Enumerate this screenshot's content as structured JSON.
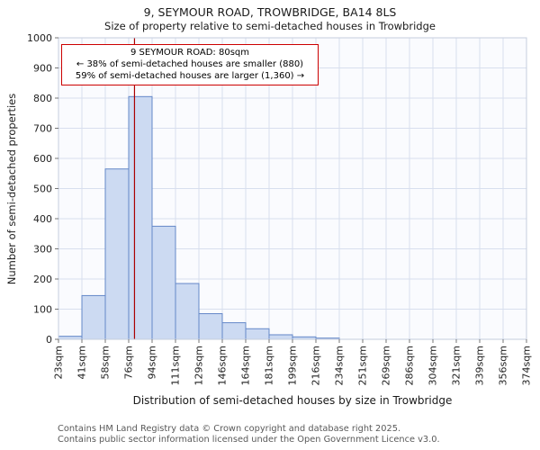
{
  "annotation": {
    "line1": "9 SEYMOUR ROAD: 80sqm",
    "line2": "← 38% of semi-detached houses are smaller (880)",
    "line3": "59% of semi-detached houses are larger (1,360) →"
  },
  "footer": {
    "line1": "Contains HM Land Registry data © Crown copyright and database right 2025.",
    "line2": "Contains public sector information licensed under the Open Government Licence v3.0."
  },
  "chart_data": {
    "type": "bar",
    "title": "9, SEYMOUR ROAD, TROWBRIDGE, BA14 8LS",
    "subtitle": "Size of property relative to semi-detached houses in Trowbridge",
    "xlabel": "Distribution of semi-detached houses by size in Trowbridge",
    "ylabel": "Number of semi-detached properties",
    "ylim": [
      0,
      1000
    ],
    "ytick_step": 100,
    "grid": true,
    "legend": false,
    "bin_edges_sqm": [
      23,
      41,
      58,
      76,
      94,
      111,
      129,
      146,
      164,
      181,
      199,
      216,
      234,
      251,
      269,
      286,
      304,
      321,
      339,
      356,
      374
    ],
    "xtick_labels": [
      "23sqm",
      "41sqm",
      "58sqm",
      "76sqm",
      "94sqm",
      "111sqm",
      "129sqm",
      "146sqm",
      "164sqm",
      "181sqm",
      "199sqm",
      "216sqm",
      "234sqm",
      "251sqm",
      "269sqm",
      "286sqm",
      "304sqm",
      "321sqm",
      "339sqm",
      "356sqm",
      "374sqm"
    ],
    "values": [
      10,
      145,
      565,
      805,
      375,
      185,
      85,
      55,
      35,
      15,
      8,
      4,
      0,
      0,
      0,
      0,
      0,
      0,
      0,
      0
    ],
    "marker": {
      "label": "9 SEYMOUR ROAD",
      "value_sqm": 80,
      "color": "#aa0000"
    },
    "colors": {
      "bar_fill": "#ccdaf2",
      "bar_border": "#6488c8",
      "grid": "#d8dfee",
      "spine": "#c4cddd",
      "plot_bg": "#fafbfe",
      "annotation_border": "#cc0000"
    }
  }
}
